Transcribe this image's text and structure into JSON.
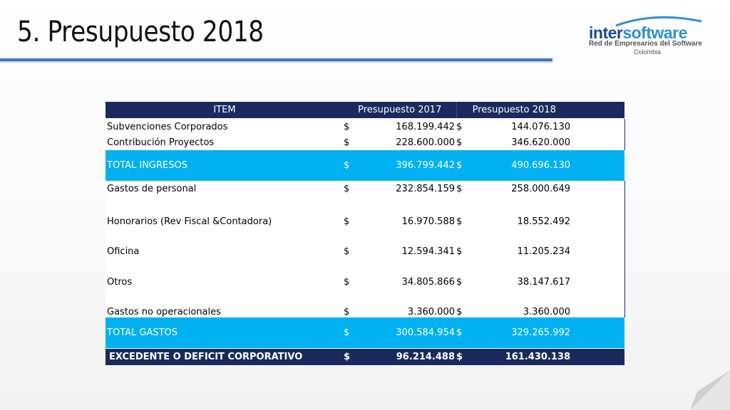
{
  "slide": {
    "title": "5. Presupuesto 2018"
  },
  "logo": {
    "word_part1": "inter",
    "word_part2": "software",
    "tagline": "Red de Empresarios del Software",
    "country": "Colombia"
  },
  "table": {
    "headers": [
      "ITEM",
      "Presupuesto 2017",
      "Presupuesto 2018"
    ],
    "currency": "$",
    "rows": [
      {
        "item": "Subvenciones Corporados",
        "v2017": "168.199.442",
        "v2018": "144.076.130"
      },
      {
        "item": "Contribución Proyectos",
        "v2017": "228.600.000",
        "v2018": "346.620.000"
      },
      {
        "item": "TOTAL INGRESOS",
        "v2017": "396.799.442",
        "v2018": "490.696.130"
      },
      {
        "item": "Gastos de personal",
        "v2017": "232.854.159",
        "v2018": "258.000.649"
      },
      {
        "item": "Honorarios (Rev Fiscal &Contadora)",
        "v2017": "16.970.588",
        "v2018": "18.552.492"
      },
      {
        "item": "Oficina",
        "v2017": "12.594.341",
        "v2018": "11.205.234"
      },
      {
        "item": "Otros",
        "v2017": "34.805.866",
        "v2018": "38.147.617"
      },
      {
        "item": "Gastos no operacionales",
        "v2017": "3.360.000",
        "v2018": "3.360.000"
      },
      {
        "item": "TOTAL GASTOS",
        "v2017": "300.584.954",
        "v2018": "329.265.992"
      },
      {
        "item": "EXCEDENTE O DEFICIT CORPORATIVO",
        "v2017": "96.214.488",
        "v2018": "161.430.138"
      }
    ]
  },
  "colors": {
    "header_bg": "#1b2a5e",
    "total_bg": "#00b0f0",
    "title_rule": "#4472c4"
  }
}
